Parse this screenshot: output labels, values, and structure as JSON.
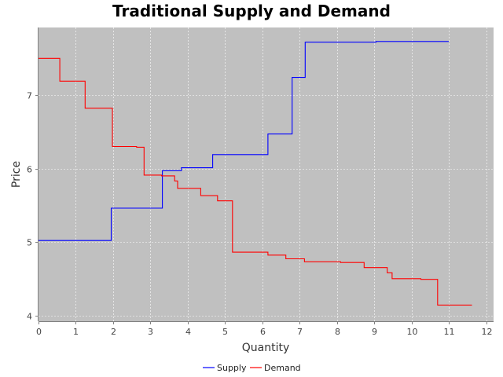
{
  "chart_data": {
    "type": "line",
    "title": "Traditional Supply and Demand",
    "xlabel": "Quantity",
    "ylabel": "Price",
    "xlim": [
      0,
      12.2
    ],
    "ylim": [
      3.92,
      7.92
    ],
    "xticks": [
      0,
      1,
      2,
      3,
      4,
      5,
      6,
      7,
      8,
      9,
      10,
      11,
      12
    ],
    "yticks": [
      4,
      5,
      6,
      7
    ],
    "grid": true,
    "legend_position": "bottom-center",
    "step": true,
    "series": [
      {
        "name": "Supply",
        "color": "#0000ff",
        "points": [
          [
            0,
            5.02
          ],
          [
            1.95,
            5.02
          ],
          [
            1.95,
            5.46
          ],
          [
            3.32,
            5.46
          ],
          [
            3.32,
            5.97
          ],
          [
            3.83,
            5.97
          ],
          [
            3.83,
            6.01
          ],
          [
            4.67,
            6.01
          ],
          [
            4.67,
            6.19
          ],
          [
            6.15,
            6.19
          ],
          [
            6.15,
            6.47
          ],
          [
            6.8,
            6.47
          ],
          [
            6.8,
            7.24
          ],
          [
            7.15,
            7.24
          ],
          [
            7.15,
            7.72
          ],
          [
            9.05,
            7.72
          ],
          [
            9.05,
            7.73
          ],
          [
            11,
            7.73
          ]
        ]
      },
      {
        "name": "Demand",
        "color": "#ff0000",
        "points": [
          [
            0,
            7.5
          ],
          [
            0.57,
            7.5
          ],
          [
            0.57,
            7.19
          ],
          [
            1.25,
            7.19
          ],
          [
            1.25,
            6.82
          ],
          [
            1.98,
            6.82
          ],
          [
            1.98,
            6.3
          ],
          [
            2.63,
            6.3
          ],
          [
            2.63,
            6.29
          ],
          [
            2.83,
            6.29
          ],
          [
            2.83,
            5.91
          ],
          [
            3.3,
            5.91
          ],
          [
            3.3,
            5.9
          ],
          [
            3.65,
            5.9
          ],
          [
            3.65,
            5.83
          ],
          [
            3.73,
            5.83
          ],
          [
            3.73,
            5.73
          ],
          [
            4.35,
            5.73
          ],
          [
            4.35,
            5.63
          ],
          [
            4.8,
            5.63
          ],
          [
            4.8,
            5.56
          ],
          [
            5.2,
            5.56
          ],
          [
            5.2,
            4.86
          ],
          [
            6.15,
            4.86
          ],
          [
            6.15,
            4.82
          ],
          [
            6.63,
            4.82
          ],
          [
            6.63,
            4.77
          ],
          [
            7.13,
            4.77
          ],
          [
            7.13,
            4.73
          ],
          [
            8.1,
            4.73
          ],
          [
            8.1,
            4.72
          ],
          [
            8.73,
            4.72
          ],
          [
            8.73,
            4.65
          ],
          [
            9.35,
            4.65
          ],
          [
            9.35,
            4.58
          ],
          [
            9.48,
            4.58
          ],
          [
            9.48,
            4.5
          ],
          [
            10.25,
            4.5
          ],
          [
            10.25,
            4.49
          ],
          [
            10.7,
            4.49
          ],
          [
            10.7,
            4.14
          ],
          [
            11.62,
            4.14
          ]
        ]
      }
    ]
  }
}
